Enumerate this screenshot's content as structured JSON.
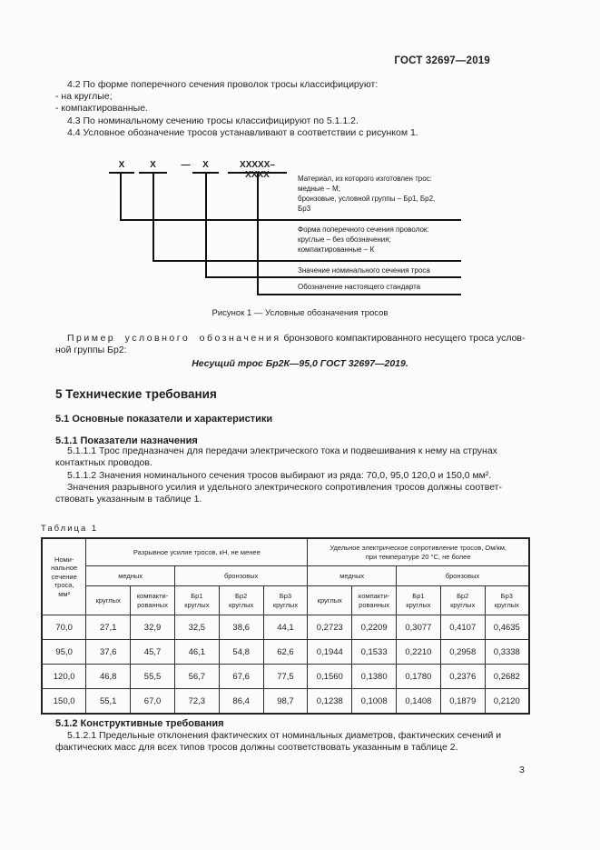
{
  "page": {
    "header": "ГОСТ 32697—2019",
    "number": "3"
  },
  "classification": {
    "p42": "4.2 По форме поперечного сечения проволок тросы классифицируют:",
    "li1": "- на круглые;",
    "li2": "- компактированные.",
    "p43": "4.3 По номинальному сечению тросы классифицируют по 5.1.1.2.",
    "p44": "4.4 Условное обозначение тросов устанавливают в соответствии с рисунком 1."
  },
  "figure": {
    "marks": {
      "x1": "X",
      "x2": "X",
      "dash": "—",
      "x3": "X",
      "code": "XXXXX–XXXX"
    },
    "callouts": [
      "Материал, из которого изготовлен трос:\nмедные – М;\nбронзовые, условной группы – Бр1, Бр2,\nБр3",
      "Форма поперечного сечения проволок:\nкруглые – без обозначения;\nкомпактированные – К",
      "Значение номинального сечения троса",
      "Обозначение настоящего стандарта"
    ],
    "caption": "Рисунок 1 — Условные обозначения тросов"
  },
  "example": {
    "lead": "Пример условного обозначения",
    "rest": " бронзового компактированного несущего троса услов-",
    "line2": "ной группы Бр2:",
    "designation": "Несущий трос Бр2К—95,0 ГОСТ 32697—2019."
  },
  "section5": {
    "h1": "5 Технические требования",
    "h2": "5.1 Основные показатели и характеристики",
    "h3": "5.1.1 Показатели назначения",
    "p5111": "5.1.1.1 Трос предназначен для передачи электрического тока и подвешивания к нему на струнах\nконтактных проводов.",
    "p5112": "5.1.1.2 Значения номинального сечения тросов выбирают из ряда: 70,0, 95,0 120,0 и 150,0 мм².",
    "p_values": "Значения разрывного усилия и удельного электрического сопротивления тросов должны соответ-\nствовать указанным в таблице 1.",
    "h4": "5.1.2 Конструктивные требования",
    "p5121": "5.1.2.1 Предельные отклонения фактических от номинальных диаметров, фактических сечений и\nфактических масс для всех типов тросов должны соответствовать указанным в таблице 2."
  },
  "table1": {
    "label": "Таблица 1",
    "col1": "Номи-\nнальное\nсечение\nтроса,\nмм²",
    "group1": "Разрывное усилие тросов, кН, не менее",
    "group2": "Удельное электрическое сопротивление тросов, Ом/км,\nпри температуре 20 °С, не более",
    "sub1": "медных",
    "sub2": "бронзовых",
    "sub3": "медных",
    "sub4": "бронзовых",
    "cols": [
      "круглых",
      "компакти-\nрованных",
      "Бр1\nкруглых",
      "Бр2\nкруглых",
      "Бр3\nкруглых",
      "круглых",
      "компакти-\nрованных",
      "Бр1\nкруглых",
      "Бр2\nкруглых",
      "Бр3\nкруглых"
    ],
    "rows": [
      [
        "70,0",
        "27,1",
        "32,9",
        "32,5",
        "38,6",
        "44,1",
        "0,2723",
        "0,2209",
        "0,3077",
        "0,4107",
        "0,4635"
      ],
      [
        "95,0",
        "37,6",
        "45,7",
        "46,1",
        "54,8",
        "62,6",
        "0,1944",
        "0,1533",
        "0,2210",
        "0,2958",
        "0,3338"
      ],
      [
        "120,0",
        "46,8",
        "55,5",
        "56,7",
        "67,6",
        "77,5",
        "0,1560",
        "0,1380",
        "0,1780",
        "0,2376",
        "0,2682"
      ],
      [
        "150,0",
        "55,1",
        "67,0",
        "72,3",
        "86,4",
        "98,7",
        "0,1238",
        "0,1008",
        "0,1408",
        "0,1879",
        "0,2120"
      ]
    ]
  }
}
